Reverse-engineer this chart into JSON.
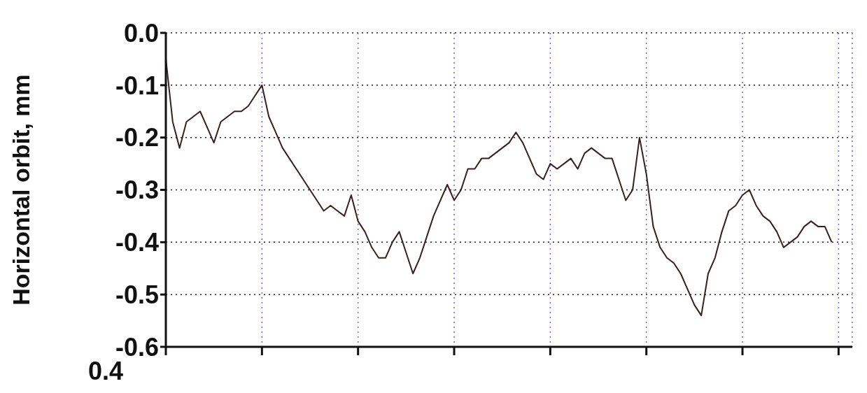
{
  "chart_data": {
    "type": "line",
    "ylabel": "Horizontal orbit, mm",
    "categories": [
      null,
      null,
      null,
      null,
      null,
      null,
      null,
      null,
      null,
      null,
      null,
      null,
      null,
      null,
      null,
      null,
      null,
      null,
      null,
      null,
      null,
      null,
      null,
      null,
      null,
      null,
      null,
      null,
      null,
      null,
      null,
      null,
      null,
      null,
      null,
      null,
      null,
      null,
      null,
      null,
      null,
      null,
      null,
      null,
      null,
      null,
      null,
      null,
      null,
      null,
      null,
      null,
      null,
      null,
      null,
      null,
      null,
      null,
      null,
      null,
      null,
      null,
      null,
      null,
      null,
      null,
      null,
      null,
      null,
      null,
      null,
      null,
      null,
      null,
      null,
      null,
      null,
      null,
      null,
      null,
      null,
      null,
      null,
      null,
      null,
      null,
      null,
      null,
      null,
      null,
      null,
      null,
      null,
      null,
      null,
      null,
      null,
      null,
      null,
      null,
      null
    ],
    "series": [
      {
        "color": "#3a1f1f",
        "values": [
          -0.05,
          -0.17,
          -0.22,
          -0.17,
          -0.16,
          -0.15,
          -0.18,
          -0.21,
          -0.17,
          -0.16,
          -0.15,
          -0.15,
          -0.14,
          -0.12,
          -0.1,
          -0.16,
          -0.19,
          -0.22,
          -0.24,
          -0.26,
          -0.28,
          -0.3,
          -0.32,
          -0.34,
          -0.33,
          -0.34,
          -0.35,
          -0.31,
          -0.36,
          -0.38,
          -0.41,
          -0.43,
          -0.43,
          -0.4,
          -0.38,
          -0.42,
          -0.46,
          -0.43,
          -0.39,
          -0.35,
          -0.32,
          -0.29,
          -0.32,
          -0.3,
          -0.26,
          -0.26,
          -0.24,
          -0.24,
          -0.23,
          -0.22,
          -0.21,
          -0.19,
          -0.21,
          -0.24,
          -0.27,
          -0.28,
          -0.25,
          -0.26,
          -0.25,
          -0.24,
          -0.26,
          -0.23,
          -0.22,
          -0.23,
          -0.24,
          -0.24,
          -0.28,
          -0.32,
          -0.3,
          -0.2,
          -0.27,
          -0.37,
          -0.41,
          -0.43,
          -0.44,
          -0.46,
          -0.49,
          -0.52,
          -0.54,
          -0.46,
          -0.43,
          -0.38,
          -0.34,
          -0.33,
          -0.31,
          -0.3,
          -0.33,
          -0.35,
          -0.36,
          -0.38,
          -0.41,
          -0.4,
          -0.39,
          -0.37,
          -0.36,
          -0.37,
          -0.37,
          -0.4,
          null,
          null,
          null
        ]
      }
    ],
    "ylim": [
      -0.6,
      0
    ],
    "yticks": [
      {
        "value": 0,
        "label": "0.0"
      },
      -0.1,
      -0.2,
      -0.3,
      -0.4,
      -0.5,
      -0.6
    ],
    "grid": true,
    "tick_labels": "y",
    "annotations": [
      "0.4"
    ]
  }
}
